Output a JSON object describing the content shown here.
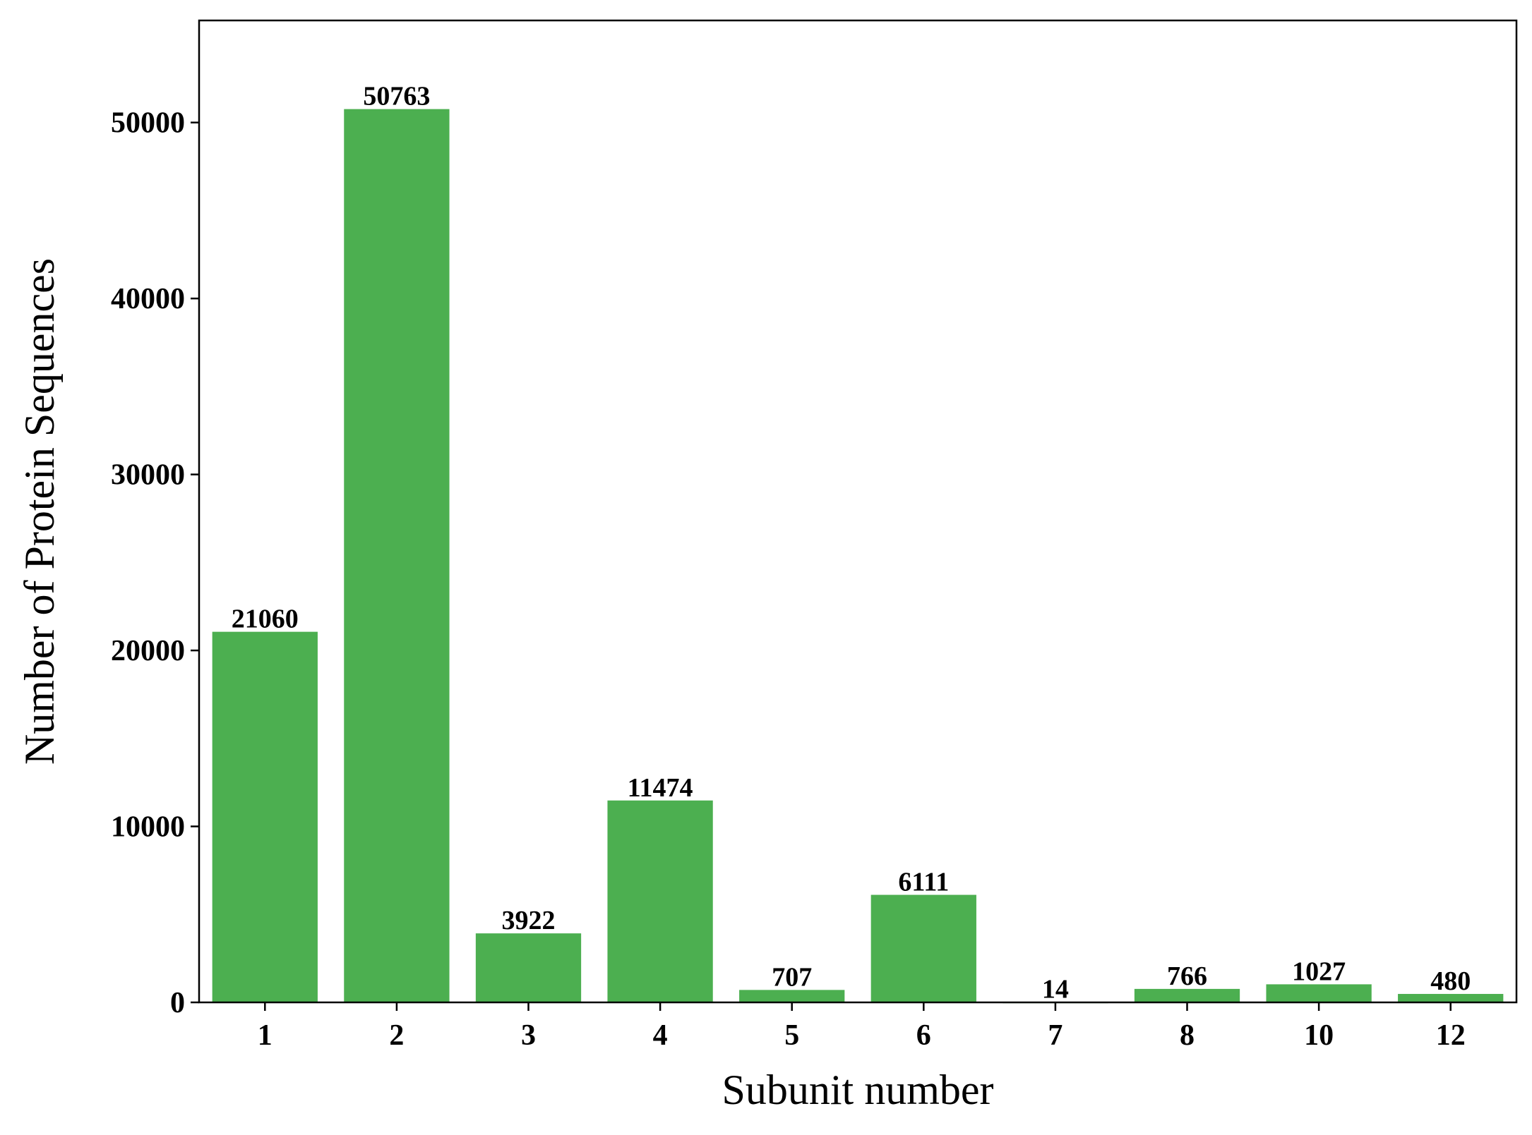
{
  "chart_data": {
    "type": "bar",
    "categories": [
      "1",
      "2",
      "3",
      "4",
      "5",
      "6",
      "7",
      "8",
      "10",
      "12"
    ],
    "values": [
      21060,
      50763,
      3922,
      11474,
      707,
      6111,
      14,
      766,
      1027,
      480
    ],
    "data_labels": [
      "21060",
      "50763",
      "3922",
      "11474",
      "707",
      "6111",
      "14",
      "766",
      "1027",
      "480"
    ],
    "title": "",
    "xlabel": "Subunit number",
    "ylabel": "Number of Protein Sequences",
    "ylim": [
      0,
      55800
    ],
    "yticks": [
      0,
      10000,
      20000,
      30000,
      40000,
      50000
    ],
    "ytick_labels": [
      "0",
      "10000",
      "20000",
      "30000",
      "40000",
      "50000"
    ],
    "grid": false,
    "legend": "none",
    "bar_color": "#4caf50"
  }
}
